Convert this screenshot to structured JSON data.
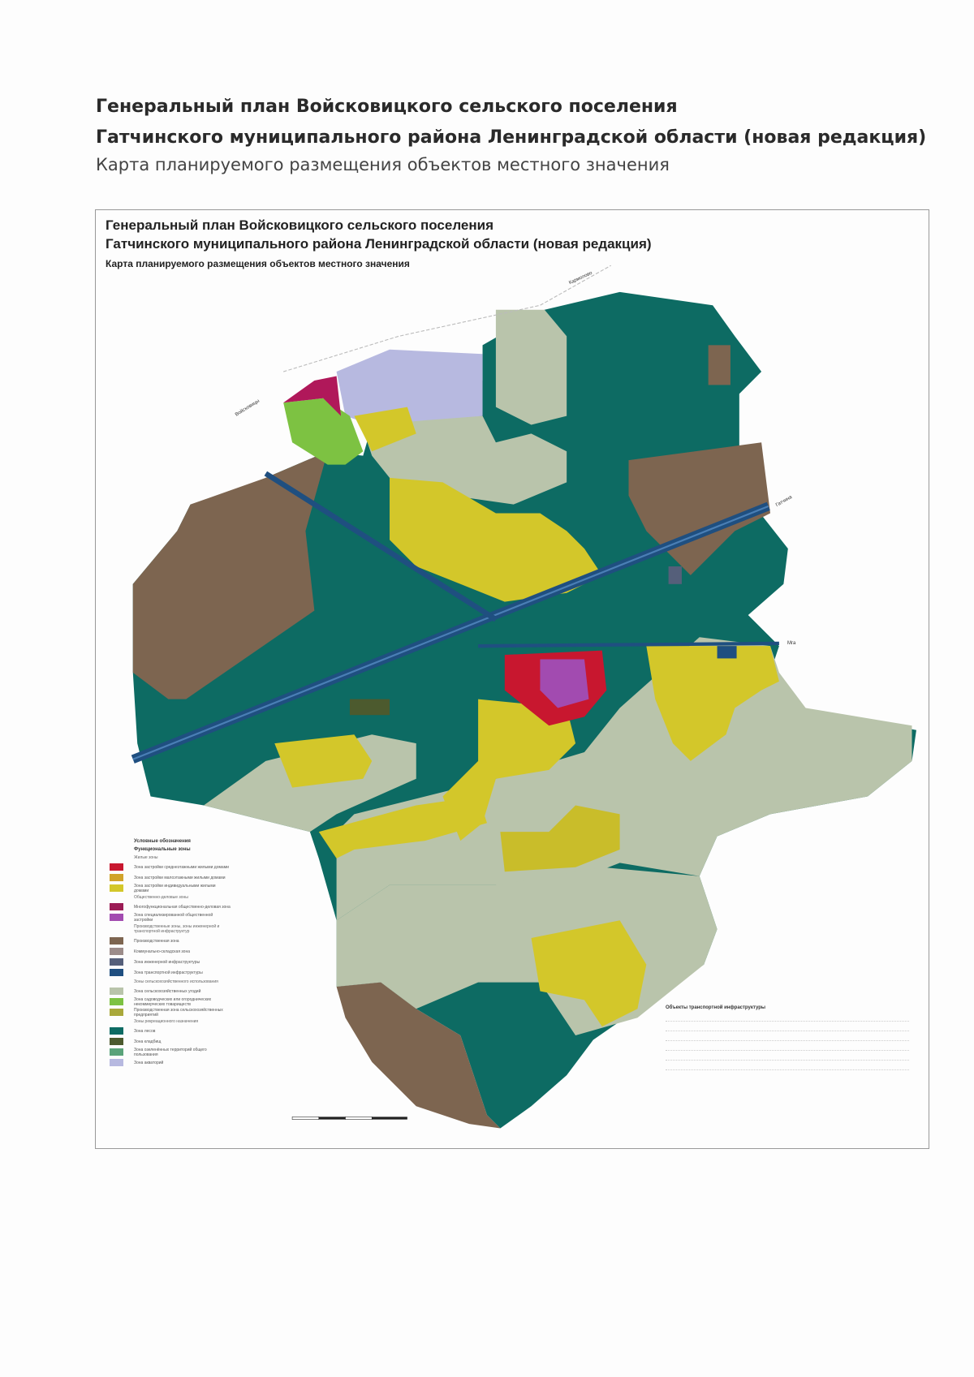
{
  "document": {
    "title_line1": "Генеральный план Войсковицкого сельского поселения",
    "title_line2": "Гатчинского муниципального района Ленинградской области (новая редакция)",
    "subtitle": "Карта планируемого размещения объектов местного значения"
  },
  "map": {
    "title_line1": "Генеральный план Войсковицкого сельского поселения",
    "title_line2": "Гатчинского муниципального района Ленинградской области (новая редакция)",
    "subtitle": "Карта планируемого размещения объектов местного значения",
    "place_labels": [
      "Войсковицы",
      "Гатчина",
      "Мга",
      "Кармолово"
    ],
    "colors": {
      "forest": "#0d6b63",
      "agricultural": "#b9c4ab",
      "production": "#7d6550",
      "residential_low": "#d3c72a",
      "public": "#b0185a",
      "residential_mid": "#c8172f",
      "recreation": "#b7b9e0",
      "green": "#7dc242",
      "transport": "#1f4f80"
    }
  },
  "legend": {
    "title": "Условные обозначения",
    "functional_zones": "Функциональные зоны",
    "groups": [
      {
        "heading": "Жилые зоны",
        "items": [
          {
            "color": "#c8172f",
            "label": "Зона застройки среднеэтажными жилыми домами"
          },
          {
            "color": "#d1a32a",
            "label": "Зона застройки малоэтажными жилыми домами"
          },
          {
            "color": "#d3c72a",
            "label": "Зона застройки индивидуальными жилыми домами"
          }
        ]
      },
      {
        "heading": "Общественно-деловые зоны",
        "items": [
          {
            "color": "#9b1b55",
            "label": "Многофункциональная общественно-деловая зона"
          },
          {
            "color": "#a24bb0",
            "label": "Зона специализированной общественной застройки"
          }
        ]
      },
      {
        "heading": "Производственные зоны, зоны инженерной и транспортной инфраструктур",
        "items": [
          {
            "color": "#7d6550",
            "label": "Производственная зона"
          },
          {
            "color": "#9c8c8a",
            "label": "Коммунально-складская зона"
          },
          {
            "color": "#555f7a",
            "label": "Зона инженерной инфраструктуры"
          },
          {
            "color": "#1f4f80",
            "label": "Зона транспортной инфраструктуры"
          }
        ]
      },
      {
        "heading": "Зоны сельскохозяйственного использования",
        "items": [
          {
            "color": "#b9c4ab",
            "label": "Зона сельскохозяйственных угодий"
          },
          {
            "color": "#7dc242",
            "label": "Зона садоводческих или огороднических некоммерческих товариществ"
          },
          {
            "color": "#a9a83a",
            "label": "Производственная зона сельскохозяйственных предприятий"
          }
        ]
      },
      {
        "heading": "Зоны рекреационного назначения",
        "items": [
          {
            "color": "#0d6b63",
            "label": "Зона лесов"
          },
          {
            "color": "#4c5a2e",
            "label": "Зона кладбищ"
          },
          {
            "color": "#5aa37a",
            "label": "Зона озеленённых территорий общего пользования"
          },
          {
            "color": "#b7b9e0",
            "label": "Зона акваторий"
          }
        ]
      }
    ]
  },
  "legend_right": {
    "heading": "Объекты транспортной инфраструктуры"
  }
}
